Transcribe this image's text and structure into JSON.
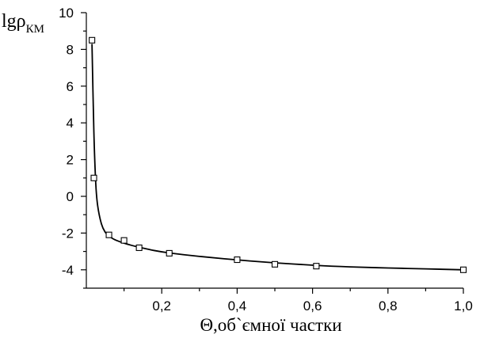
{
  "chart_data": {
    "type": "scatter",
    "ylabel": {
      "base": "lgρ",
      "subscript": "КМ"
    },
    "xlabel": "Θ,об`ємної частки",
    "xlim": [
      0.0,
      1.0
    ],
    "ylim": [
      -5,
      10
    ],
    "x_ticks": [
      {
        "value": 0.2,
        "label": "0,2"
      },
      {
        "value": 0.4,
        "label": "0,4"
      },
      {
        "value": 0.6,
        "label": "0,6"
      },
      {
        "value": 0.8,
        "label": "0,8"
      },
      {
        "value": 1.0,
        "label": "1,0"
      }
    ],
    "y_ticks": [
      {
        "value": -4,
        "label": "-4"
      },
      {
        "value": -2,
        "label": "-2"
      },
      {
        "value": 0,
        "label": "0"
      },
      {
        "value": 2,
        "label": "2"
      },
      {
        "value": 4,
        "label": "4"
      },
      {
        "value": 6,
        "label": "6"
      },
      {
        "value": 8,
        "label": "8"
      },
      {
        "value": 10,
        "label": "10"
      }
    ],
    "series": [
      {
        "marker": "open-square",
        "x": [
          0.015,
          0.02,
          0.06,
          0.1,
          0.14,
          0.22,
          0.4,
          0.5,
          0.61,
          1.0
        ],
        "y": [
          8.5,
          1.0,
          -2.1,
          -2.4,
          -2.8,
          -3.1,
          -3.45,
          -3.7,
          -3.8,
          -4.0
        ]
      }
    ],
    "fit_curve": {
      "x": [
        0.015,
        0.02,
        0.025,
        0.03,
        0.04,
        0.05,
        0.06,
        0.07,
        0.08,
        0.1,
        0.12,
        0.14,
        0.18,
        0.22,
        0.3,
        0.4,
        0.5,
        0.61,
        0.7,
        0.8,
        0.9,
        1.0
      ],
      "y": [
        8.3,
        3.5,
        0.7,
        -0.5,
        -1.5,
        -1.95,
        -2.15,
        -2.3,
        -2.4,
        -2.55,
        -2.67,
        -2.77,
        -2.95,
        -3.08,
        -3.27,
        -3.46,
        -3.62,
        -3.76,
        -3.84,
        -3.9,
        -3.95,
        -4.0
      ]
    }
  }
}
